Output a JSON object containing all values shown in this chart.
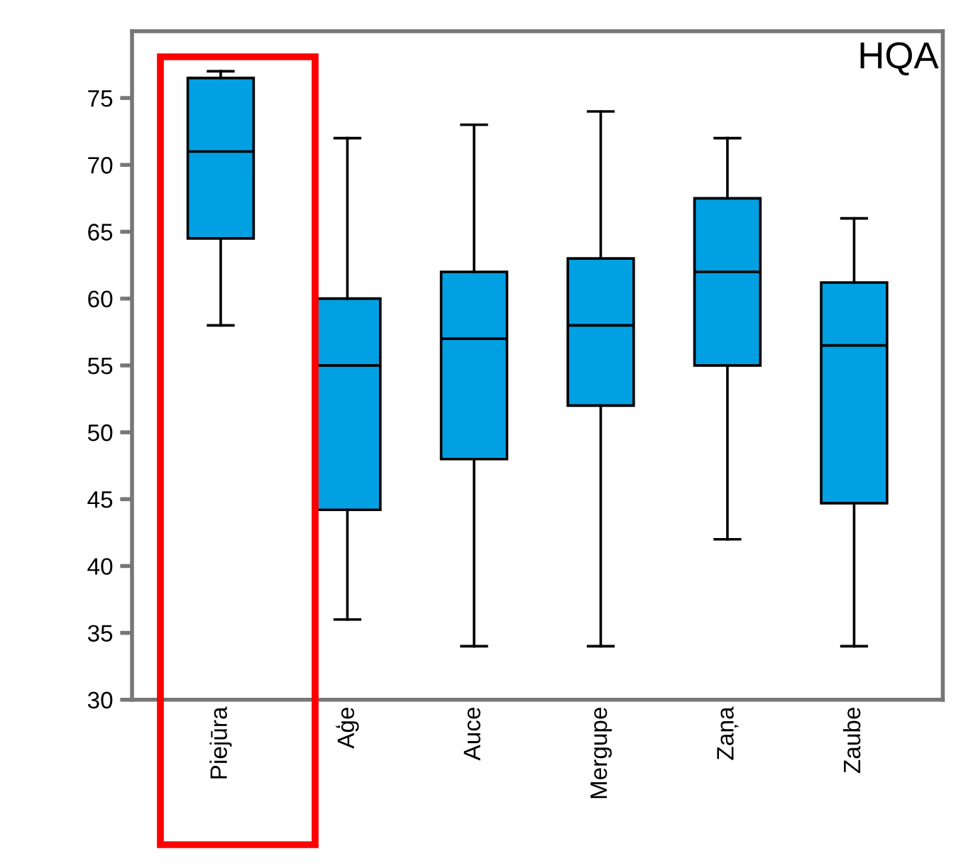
{
  "chart_data": {
    "type": "box",
    "title": "HQA",
    "categories": [
      "Piejūra",
      "Aģe",
      "Auce",
      "Mergupe",
      "Zaņa",
      "Zaube"
    ],
    "boxes": [
      {
        "low": 58,
        "q1": 64.5,
        "median": 71,
        "q3": 76.5,
        "high": 77
      },
      {
        "low": 36,
        "q1": 44.2,
        "median": 55,
        "q3": 60,
        "high": 72
      },
      {
        "low": 34,
        "q1": 48,
        "median": 57,
        "q3": 62,
        "high": 73
      },
      {
        "low": 34,
        "q1": 52,
        "median": 58,
        "q3": 63,
        "high": 74
      },
      {
        "low": 42,
        "q1": 55,
        "median": 62,
        "q3": 67.5,
        "high": 72
      },
      {
        "low": 34,
        "q1": 44.7,
        "median": 56.5,
        "q3": 61.2,
        "high": 66
      }
    ],
    "color": "#00a0e3",
    "ylim": [
      30,
      80
    ],
    "yticks": [
      30,
      35,
      40,
      45,
      50,
      55,
      60,
      65,
      70,
      75
    ],
    "grid": false
  }
}
